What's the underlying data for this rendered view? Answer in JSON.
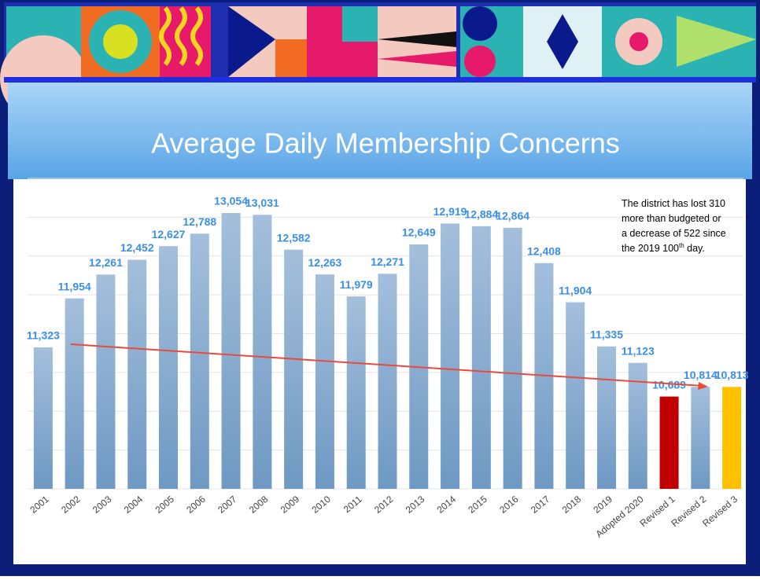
{
  "chart_data": {
    "type": "bar",
    "title": "Average Daily Membership Concerns",
    "categories": [
      "2001",
      "2002",
      "2003",
      "2004",
      "2005",
      "2006",
      "2007",
      "2008",
      "2009",
      "2010",
      "2011",
      "2012",
      "2013",
      "2014",
      "2015",
      "2016",
      "2017",
      "2018",
      "2019",
      "Adopted 2020",
      "Revised 1",
      "Revised 2",
      "Revised 3"
    ],
    "values": [
      11323,
      11954,
      12261,
      12452,
      12627,
      12788,
      13054,
      13031,
      12582,
      12263,
      11979,
      12271,
      12649,
      12919,
      12884,
      12864,
      12408,
      11904,
      11335,
      11123,
      10689,
      10814,
      10813
    ],
    "value_labels": [
      "11,323",
      "11,954",
      "12,261",
      "12,452",
      "12,627",
      "12,788",
      "13,054",
      "13,031",
      "12,582",
      "12,263",
      "11,979",
      "12,271",
      "12,649",
      "12,919",
      "12,884",
      "12,864",
      "12,408",
      "11,904",
      "11,335",
      "11,123",
      "10,689",
      "10,814",
      "10,813"
    ],
    "colors": [
      "#8fb0d2",
      "#8fb0d2",
      "#8fb0d2",
      "#8fb0d2",
      "#8fb0d2",
      "#8fb0d2",
      "#8fb0d2",
      "#8fb0d2",
      "#8fb0d2",
      "#8fb0d2",
      "#8fb0d2",
      "#8fb0d2",
      "#8fb0d2",
      "#8fb0d2",
      "#8fb0d2",
      "#8fb0d2",
      "#8fb0d2",
      "#8fb0d2",
      "#8fb0d2",
      "#8fb0d2",
      "#c00000",
      "#8fb0d2",
      "#ffc000"
    ],
    "label_color": "#3a8fe8",
    "ylim": [
      9500,
      13500
    ],
    "yticks": [
      9500,
      10000,
      10500,
      11000,
      11500,
      12000,
      12500,
      13000,
      13500
    ],
    "grid": true,
    "annotation": {
      "lines": [
        "The district has lost 310",
        "more than  budgeted or",
        "a decrease of 522 since"
      ],
      "last_line": [
        "the 2019 100",
        "th",
        " day."
      ]
    }
  }
}
